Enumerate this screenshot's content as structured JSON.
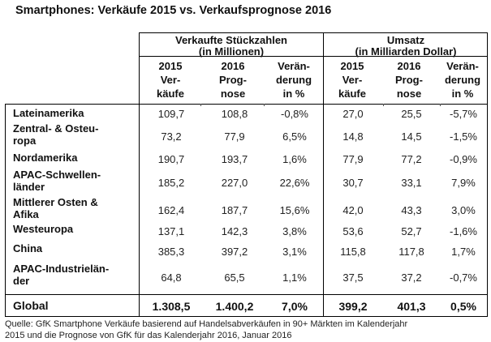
{
  "title": "Smartphones: Verkäufe 2015 vs. Verkaufsprognose 2016",
  "groups": [
    {
      "line1": "Verkaufte Stückzahlen",
      "line2": "(in Millionen)"
    },
    {
      "line1": "Umsatz",
      "line2": "(in Milliarden Dollar)"
    }
  ],
  "subheaders": [
    {
      "l1": "2015",
      "l2": "Ver-",
      "l3": "käufe"
    },
    {
      "l1": "2016",
      "l2": "Prog-",
      "l3": "nose"
    },
    {
      "l1": "Verän-",
      "l2": "derung",
      "l3": "in %"
    },
    {
      "l1": "2015",
      "l2": "Ver-",
      "l3": "käufe"
    },
    {
      "l1": "2016",
      "l2": "Prog-",
      "l3": "nose"
    },
    {
      "l1": "Verän-",
      "l2": "derung",
      "l3": "in %"
    }
  ],
  "rows": [
    {
      "label1": "Lateinamerika",
      "label2": "",
      "values": [
        "109,7",
        "108,8",
        "-0,8%",
        "27,0",
        "25,5",
        "-5,7%"
      ]
    },
    {
      "label1": "Zentral- & Osteu-",
      "label2": "ropa",
      "values": [
        "73,2",
        "77,9",
        "6,5%",
        "14,8",
        "14,5",
        "-1,5%"
      ]
    },
    {
      "label1": "Nordamerika",
      "label2": "",
      "values": [
        "190,7",
        "193,7",
        "1,6%",
        "77,9",
        "77,2",
        "-0,9%"
      ]
    },
    {
      "label1": "APAC-Schwellen-",
      "label2": "länder",
      "values": [
        "185,2",
        "227,0",
        "22,6%",
        "30,7",
        "33,1",
        "7,9%"
      ]
    },
    {
      "label1": "Mittlerer Osten &",
      "label2": "Afika",
      "values": [
        "162,4",
        "187,7",
        "15,6%",
        "42,0",
        "43,3",
        "3,0%"
      ]
    },
    {
      "label1": "Westeuropa",
      "label2": "",
      "values": [
        "137,1",
        "142,3",
        "3,8%",
        "53,6",
        "52,7",
        "-1,6%"
      ]
    },
    {
      "label1": "China",
      "label2": "",
      "values": [
        "385,3",
        "397,2",
        "3,1%",
        "115,8",
        "117,8",
        "1,7%"
      ]
    },
    {
      "label1": "APAC-Industrielän-",
      "label2": "der",
      "values": [
        "64,8",
        "65,5",
        "1,1%",
        "37,5",
        "37,2",
        "-0,7%"
      ]
    }
  ],
  "global": {
    "label": "Global",
    "values": [
      "1.308,5",
      "1.400,2",
      "7,0%",
      "399,2",
      "401,3",
      "0,5%"
    ]
  },
  "footer": {
    "line1": "Quelle: GfK Smartphone Verkäufe basierend auf Handelsabverkäufen in 90+ Märkten im Kalenderjahr",
    "line2": "2015 und die Prognose von GfK für das Kalenderjahr 2016, Januar 2016"
  }
}
